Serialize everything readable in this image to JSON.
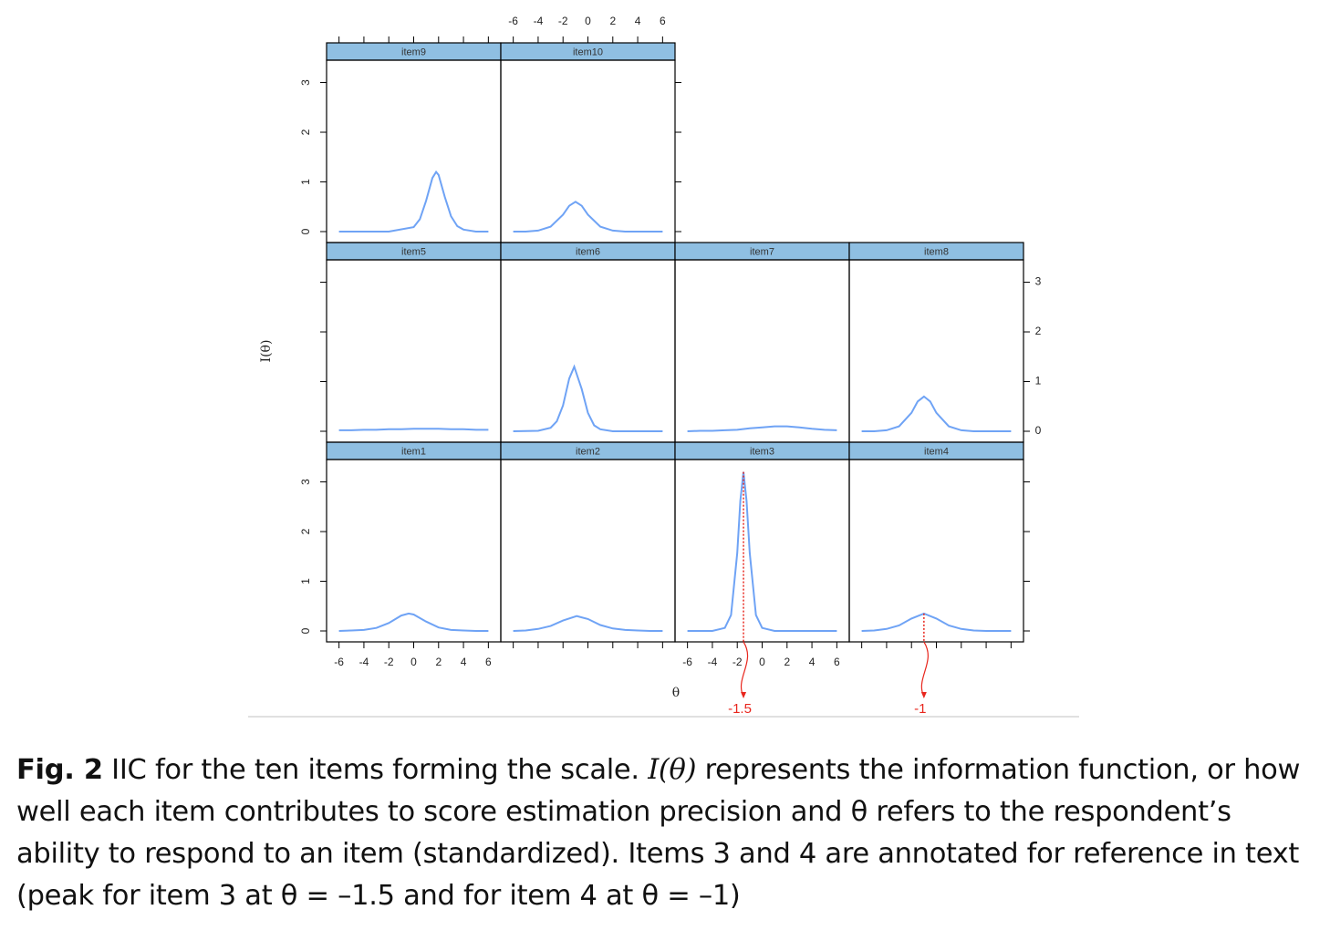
{
  "chart_data": [
    {
      "type": "line",
      "title": "item1",
      "color": "#6fa3f5",
      "x": [
        -6,
        -5,
        -4,
        -3,
        -2,
        -1,
        -0.4,
        0,
        1,
        2,
        3,
        4,
        5,
        6
      ],
      "values": [
        0.0,
        0.01,
        0.02,
        0.06,
        0.16,
        0.31,
        0.35,
        0.33,
        0.19,
        0.07,
        0.02,
        0.01,
        0.0,
        0.0
      ]
    },
    {
      "type": "line",
      "title": "item2",
      "color": "#6fa3f5",
      "x": [
        -6,
        -5,
        -4,
        -3,
        -2,
        -0.9,
        0,
        1,
        2,
        3,
        4,
        5,
        6
      ],
      "values": [
        0.0,
        0.01,
        0.04,
        0.1,
        0.21,
        0.3,
        0.24,
        0.12,
        0.05,
        0.02,
        0.01,
        0.0,
        0.0
      ]
    },
    {
      "type": "line",
      "title": "item3",
      "color": "#6fa3f5",
      "x": [
        -6,
        -4,
        -3,
        -2.5,
        -2,
        -1.75,
        -1.5,
        -1.25,
        -1,
        -0.5,
        0,
        1,
        2,
        4,
        6
      ],
      "values": [
        0.0,
        0.0,
        0.06,
        0.32,
        1.57,
        2.62,
        3.2,
        2.62,
        1.57,
        0.32,
        0.06,
        0.0,
        0.0,
        0.0,
        0.0
      ],
      "annotations": [
        {
          "x": -1.5
        }
      ]
    },
    {
      "type": "line",
      "title": "item4",
      "color": "#6fa3f5",
      "x": [
        -6,
        -5,
        -4,
        -3,
        -2,
        -1,
        0,
        1,
        2,
        3,
        4,
        5,
        6
      ],
      "values": [
        0.0,
        0.01,
        0.04,
        0.11,
        0.25,
        0.35,
        0.25,
        0.11,
        0.04,
        0.01,
        0.0,
        0.0,
        0.0
      ],
      "annotations": [
        {
          "x": -1
        }
      ]
    },
    {
      "type": "line",
      "title": "item5",
      "color": "#6fa3f5",
      "x": [
        -6,
        -5,
        -4,
        -3,
        -2,
        -1,
        0,
        1,
        2,
        3,
        4,
        5,
        6
      ],
      "values": [
        0.02,
        0.02,
        0.03,
        0.03,
        0.04,
        0.04,
        0.05,
        0.05,
        0.05,
        0.04,
        0.04,
        0.03,
        0.03
      ]
    },
    {
      "type": "line",
      "title": "item6",
      "color": "#6fa3f5",
      "x": [
        -6,
        -4,
        -3,
        -2.5,
        -2,
        -1.5,
        -1.1,
        -0.5,
        0,
        0.5,
        1,
        2,
        4,
        6
      ],
      "values": [
        0.0,
        0.01,
        0.07,
        0.2,
        0.52,
        1.06,
        1.3,
        0.85,
        0.37,
        0.12,
        0.04,
        0.0,
        0.0,
        0.0
      ]
    },
    {
      "type": "line",
      "title": "item7",
      "color": "#6fa3f5",
      "x": [
        -6,
        -5,
        -4,
        -3,
        -2,
        -1,
        0,
        1,
        1.6,
        2,
        3,
        4,
        5,
        6
      ],
      "values": [
        0.0,
        0.01,
        0.01,
        0.02,
        0.03,
        0.06,
        0.08,
        0.1,
        0.1,
        0.1,
        0.08,
        0.05,
        0.03,
        0.02
      ]
    },
    {
      "type": "line",
      "title": "item8",
      "color": "#6fa3f5",
      "x": [
        -6,
        -5,
        -4,
        -3,
        -2,
        -1.5,
        -1,
        -0.5,
        0,
        1,
        2,
        3,
        4,
        6
      ],
      "values": [
        0.0,
        0.0,
        0.02,
        0.1,
        0.37,
        0.6,
        0.7,
        0.6,
        0.37,
        0.1,
        0.02,
        0.0,
        0.0,
        0.0
      ]
    },
    {
      "type": "line",
      "title": "item9",
      "color": "#6fa3f5",
      "x": [
        -6,
        -4,
        -2,
        0,
        0.5,
        1,
        1.5,
        1.8,
        2,
        2.5,
        3,
        3.5,
        4,
        5,
        6
      ],
      "values": [
        0.0,
        0.0,
        0.0,
        0.09,
        0.25,
        0.62,
        1.08,
        1.2,
        1.14,
        0.7,
        0.31,
        0.11,
        0.04,
        0.0,
        0.0
      ]
    },
    {
      "type": "line",
      "title": "item10",
      "color": "#6fa3f5",
      "x": [
        -6,
        -5,
        -4,
        -3,
        -2,
        -1.5,
        -1,
        -0.5,
        0,
        1,
        2,
        3,
        4,
        6
      ],
      "values": [
        0.0,
        0.0,
        0.02,
        0.1,
        0.34,
        0.52,
        0.6,
        0.52,
        0.34,
        0.1,
        0.02,
        0.0,
        0.0,
        0.0
      ]
    }
  ],
  "axes": {
    "xlabel": "θ",
    "ylabel": "I(θ)",
    "xlim": [
      -7,
      7
    ],
    "ylim": [
      -0.22,
      3.45
    ],
    "xticks": [
      -6,
      -4,
      -2,
      0,
      2,
      4,
      6
    ],
    "yticks": [
      0,
      1,
      2,
      3
    ],
    "strip_color": "#8fbfe2",
    "annotation_color": "#e8261d"
  },
  "caption": {
    "label": "Fig. 2",
    "text": "IIC for the ten items forming the scale.",
    "math": "I(θ)",
    "rest": "represents the information function, or how well each item contributes to score estimation precision and θ refers to the respondent’s ability to respond to an item (standardized). Items 3 and 4 are annotated for reference in text (peak for item 3 at θ = –1.5 and for item 4 at θ = –1)"
  }
}
